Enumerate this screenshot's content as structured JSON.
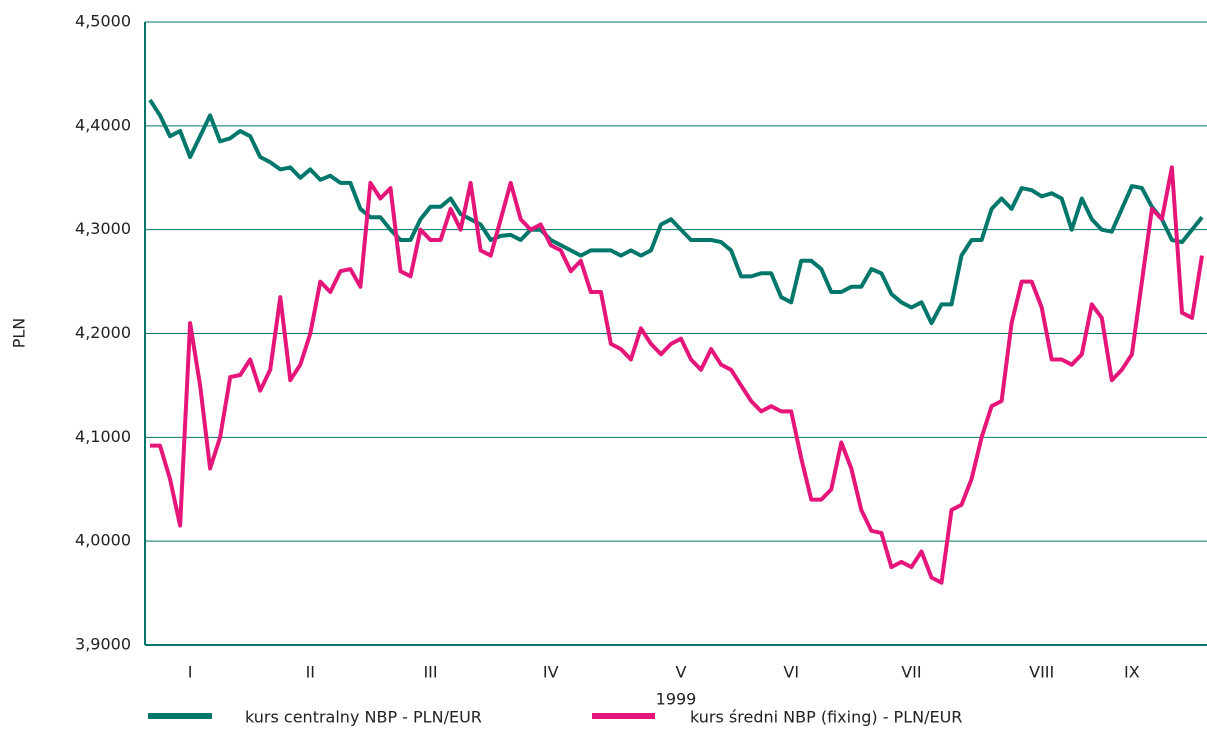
{
  "chart_data": {
    "type": "line",
    "xlabel": "1999",
    "ylabel": "PLN",
    "categories": [
      null,
      null,
      null,
      null,
      "I",
      null,
      null,
      null,
      null,
      null,
      null,
      null,
      null,
      null,
      null,
      null,
      "II",
      null,
      null,
      null,
      null,
      null,
      null,
      null,
      null,
      null,
      null,
      null,
      "III",
      null,
      null,
      null,
      null,
      null,
      null,
      null,
      null,
      null,
      null,
      null,
      "IV",
      null,
      null,
      null,
      null,
      null,
      null,
      null,
      null,
      null,
      null,
      null,
      null,
      "V",
      null,
      null,
      null,
      null,
      null,
      null,
      null,
      null,
      null,
      null,
      "VI",
      null,
      null,
      null,
      null,
      null,
      null,
      null,
      null,
      null,
      null,
      null,
      "VII",
      null,
      null,
      null,
      null,
      null,
      null,
      null,
      null,
      null,
      null,
      null,
      null,
      "VIII",
      null,
      null,
      null,
      null,
      null,
      null,
      null,
      null,
      "IX",
      null,
      null,
      null,
      null,
      null,
      null,
      null
    ],
    "series": [
      {
        "name": "kurs centralny NBP - PLN/EUR",
        "color": "#00776a",
        "values": [
          4.425,
          4.41,
          4.39,
          4.395,
          4.37,
          4.39,
          4.41,
          4.385,
          4.388,
          4.395,
          4.39,
          4.37,
          4.365,
          4.358,
          4.36,
          4.35,
          4.358,
          4.348,
          4.352,
          4.345,
          4.345,
          4.32,
          4.312,
          4.312,
          4.3,
          4.29,
          4.29,
          4.31,
          4.322,
          4.322,
          4.33,
          4.315,
          4.31,
          4.305,
          4.29,
          4.294,
          4.295,
          4.29,
          4.3,
          4.3,
          4.29,
          4.285,
          4.28,
          4.275,
          4.28,
          4.28,
          4.28,
          4.275,
          4.28,
          4.275,
          4.28,
          4.305,
          4.31,
          4.3,
          4.29,
          4.29,
          4.29,
          4.288,
          4.28,
          4.255,
          4.255,
          4.258,
          4.258,
          4.235,
          4.23,
          4.27,
          4.27,
          4.262,
          4.24,
          4.24,
          4.245,
          4.245,
          4.262,
          4.258,
          4.238,
          4.23,
          4.225,
          4.23,
          4.21,
          4.228,
          4.228,
          4.275,
          4.29,
          4.29,
          4.32,
          4.33,
          4.32,
          4.34,
          4.338,
          4.332,
          4.335,
          4.33,
          4.3,
          4.33,
          4.31,
          4.3,
          4.298,
          4.32,
          4.342,
          4.34,
          4.322,
          4.31,
          4.29,
          4.288,
          4.3,
          4.312
        ]
      },
      {
        "name": "kurs średni NBP (fixing) - PLN/EUR",
        "color": "#e5157a",
        "values": [
          4.092,
          4.092,
          4.06,
          4.015,
          4.21,
          4.15,
          4.07,
          4.1,
          4.158,
          4.16,
          4.175,
          4.145,
          4.165,
          4.235,
          4.155,
          4.17,
          4.2,
          4.25,
          4.24,
          4.26,
          4.262,
          4.245,
          4.345,
          4.33,
          4.34,
          4.26,
          4.255,
          4.3,
          4.29,
          4.29,
          4.32,
          4.3,
          4.345,
          4.28,
          4.275,
          4.31,
          4.345,
          4.31,
          4.3,
          4.305,
          4.285,
          4.28,
          4.26,
          4.27,
          4.24,
          4.24,
          4.19,
          4.185,
          4.175,
          4.205,
          4.19,
          4.18,
          4.19,
          4.195,
          4.175,
          4.165,
          4.185,
          4.17,
          4.165,
          4.15,
          4.135,
          4.125,
          4.13,
          4.125,
          4.125,
          4.08,
          4.04,
          4.04,
          4.05,
          4.095,
          4.07,
          4.03,
          4.01,
          4.008,
          3.975,
          3.98,
          3.975,
          3.99,
          3.965,
          3.96,
          4.03,
          4.035,
          4.06,
          4.1,
          4.13,
          4.135,
          4.21,
          4.25,
          4.25,
          4.225,
          4.175,
          4.175,
          4.17,
          4.18,
          4.228,
          4.215,
          4.155,
          4.165,
          4.18,
          4.25,
          4.32,
          4.31,
          4.36,
          4.22,
          4.215,
          4.275
        ]
      }
    ],
    "ylim": [
      3.9,
      4.5
    ],
    "yticks": [
      {
        "value": 3.9,
        "label": "3,9000"
      },
      {
        "value": 4.0,
        "label": "4,0000"
      },
      {
        "value": 4.1,
        "label": "4,1000"
      },
      {
        "value": 4.2,
        "label": "4,2000"
      },
      {
        "value": 4.3,
        "label": "4,3000"
      },
      {
        "value": 4.4,
        "label": "4,4000"
      },
      {
        "value": 4.5,
        "label": "4,5000"
      }
    ],
    "grid": true
  }
}
